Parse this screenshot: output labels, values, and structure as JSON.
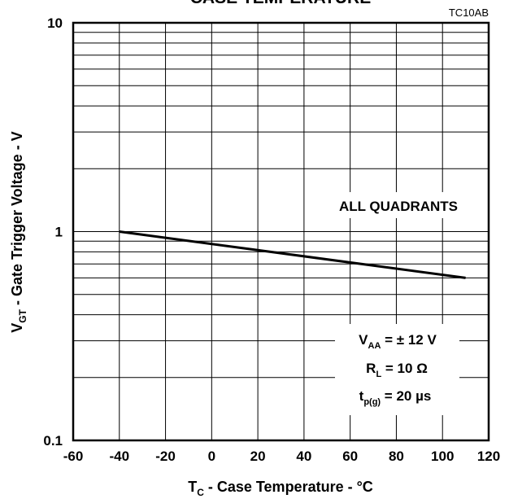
{
  "chart_data": {
    "type": "line",
    "title": "CASE TEMPERATURE",
    "code": "TC10AB",
    "xlabel": {
      "main": "T",
      "sub": "C",
      "rest": " - Case Temperature - °C"
    },
    "ylabel": {
      "main": "V",
      "sub": "GT",
      "rest": " - Gate Trigger Voltage - V"
    },
    "xlim": [
      -60,
      120
    ],
    "ylim": [
      0.1,
      10
    ],
    "yscale": "log",
    "grid": true,
    "x_ticks": [
      "-60",
      "-40",
      "-20",
      "0",
      "20",
      "40",
      "60",
      "80",
      "100",
      "120"
    ],
    "y_ticks": [
      "0.1",
      "1",
      "10"
    ],
    "series": [
      {
        "x": [
          -40,
          110
        ],
        "y": [
          1.0,
          0.6
        ]
      }
    ],
    "annotation": "ALL QUADRANTS",
    "conditions": [
      {
        "main": "V",
        "sub": "AA",
        "rest": " = ± 12 V"
      },
      {
        "main": "R",
        "sub": "L",
        "rest": " = 10 Ω"
      },
      {
        "main": "t",
        "sub": "p(g)",
        "rest": " = 20 µs"
      }
    ]
  }
}
